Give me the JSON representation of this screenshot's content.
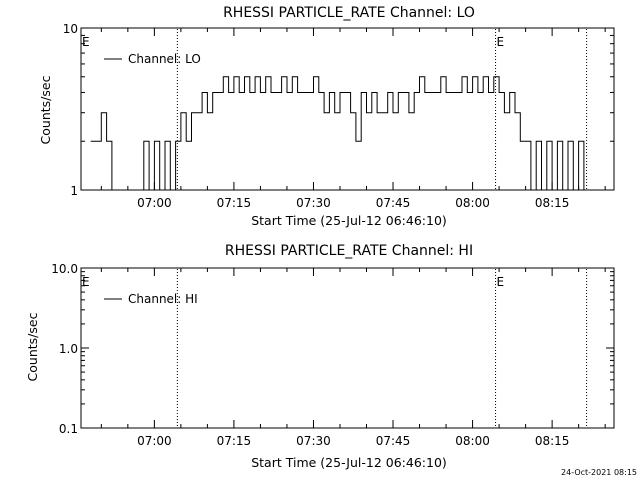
{
  "footer_timestamp": "24-Oct-2021 08:15",
  "chart_data": [
    {
      "type": "line",
      "title": "RHESSI PARTICLE_RATE Channel: LO",
      "xlabel": "Start Time (25-Jul-12 06:46:10)",
      "ylabel": "Counts/sec",
      "yscale": "log",
      "xlim": [
        "06:46:10",
        "08:26:40"
      ],
      "ylim": [
        1,
        10
      ],
      "x_ticks": [
        "07:00",
        "07:15",
        "07:30",
        "07:45",
        "08:00",
        "08:15"
      ],
      "y_ticks": [
        "1",
        "10"
      ],
      "event_lines": [
        {
          "x": "07:04:20",
          "style": "dotted"
        },
        {
          "x": "08:04:20",
          "style": "dotted"
        },
        {
          "x": "08:21:30",
          "style": "dotted"
        }
      ],
      "event_markers": [
        {
          "x": "06:46:10",
          "label": "E"
        },
        {
          "x": "08:04:20",
          "label": "E"
        }
      ],
      "legend": "top-left",
      "series": [
        {
          "name": "Channel: LO",
          "x": [
            "06:48:00",
            "06:49:00",
            "06:50:00",
            "06:51:00",
            "06:52:00",
            "06:53:00",
            "06:54:00",
            "06:55:00",
            "06:56:00",
            "06:57:00",
            "06:58:00",
            "06:59:00",
            "07:00:00",
            "07:01:00",
            "07:02:00",
            "07:03:00",
            "07:04:00",
            "07:05:00",
            "07:06:00",
            "07:07:00",
            "07:08:00",
            "07:09:00",
            "07:10:00",
            "07:11:00",
            "07:12:00",
            "07:13:00",
            "07:14:00",
            "07:15:00",
            "07:16:00",
            "07:17:00",
            "07:18:00",
            "07:19:00",
            "07:20:00",
            "07:21:00",
            "07:22:00",
            "07:23:00",
            "07:24:00",
            "07:25:00",
            "07:26:00",
            "07:27:00",
            "07:28:00",
            "07:29:00",
            "07:30:00",
            "07:31:00",
            "07:32:00",
            "07:33:00",
            "07:34:00",
            "07:35:00",
            "07:36:00",
            "07:37:00",
            "07:38:00",
            "07:39:00",
            "07:40:00",
            "07:41:00",
            "07:42:00",
            "07:43:00",
            "07:44:00",
            "07:45:00",
            "07:46:00",
            "07:47:00",
            "07:48:00",
            "07:49:00",
            "07:50:00",
            "07:51:00",
            "07:52:00",
            "07:53:00",
            "07:54:00",
            "07:55:00",
            "07:56:00",
            "07:57:00",
            "07:58:00",
            "07:59:00",
            "08:00:00",
            "08:01:00",
            "08:02:00",
            "08:03:00",
            "08:04:00",
            "08:05:00",
            "08:06:00",
            "08:07:00",
            "08:08:00",
            "08:09:00",
            "08:10:00",
            "08:11:00",
            "08:12:00",
            "08:13:00",
            "08:14:00",
            "08:15:00",
            "08:16:00",
            "08:17:00",
            "08:18:00",
            "08:19:00",
            "08:20:00",
            "08:21:00"
          ],
          "values": [
            2,
            2,
            3,
            2,
            1,
            1,
            1,
            1,
            1,
            1,
            2,
            1,
            2,
            1,
            2,
            1,
            2,
            3,
            2,
            3,
            3,
            4,
            3,
            4,
            4,
            5,
            4,
            5,
            4,
            5,
            4,
            5,
            4,
            5,
            4,
            4,
            5,
            4,
            5,
            4,
            4,
            4,
            5,
            4,
            3,
            4,
            3,
            4,
            4,
            3,
            2,
            4,
            3,
            4,
            3,
            3,
            4,
            3,
            4,
            4,
            3,
            4,
            5,
            4,
            4,
            4,
            5,
            4,
            4,
            4,
            5,
            4,
            5,
            4,
            5,
            4,
            5,
            4,
            3,
            4,
            3,
            2,
            2,
            1,
            2,
            1,
            2,
            1,
            2,
            1,
            2,
            1,
            2,
            1
          ]
        }
      ]
    },
    {
      "type": "line",
      "title": "RHESSI PARTICLE_RATE Channel: HI",
      "xlabel": "Start Time (25-Jul-12 06:46:10)",
      "ylabel": "Counts/sec",
      "yscale": "log",
      "xlim": [
        "06:46:10",
        "08:26:40"
      ],
      "ylim": [
        0.1,
        10
      ],
      "x_ticks": [
        "07:00",
        "07:15",
        "07:30",
        "07:45",
        "08:00",
        "08:15"
      ],
      "y_ticks": [
        "0.1",
        "1.0",
        "10.0"
      ],
      "event_lines": [
        {
          "x": "07:04:20",
          "style": "dotted"
        },
        {
          "x": "08:04:20",
          "style": "dotted"
        },
        {
          "x": "08:21:30",
          "style": "dotted"
        }
      ],
      "event_markers": [
        {
          "x": "06:46:10",
          "label": "E"
        },
        {
          "x": "08:04:20",
          "label": "E"
        }
      ],
      "legend": "top-left",
      "series": [
        {
          "name": "Channel: HI",
          "x": [],
          "values": []
        }
      ]
    }
  ]
}
